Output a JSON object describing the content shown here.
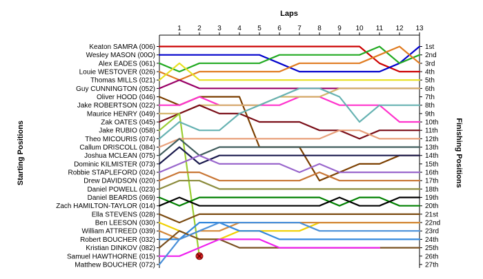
{
  "chart_data": {
    "type": "line",
    "title": "",
    "xlabel": "Laps",
    "ylabel_left": "Starting Positions",
    "ylabel_right": "Finishing Positions",
    "x": [
      0,
      1,
      2,
      3,
      4,
      5,
      6,
      7,
      8,
      9,
      10,
      11,
      12,
      13
    ],
    "x_tick_labels": [
      "1",
      "2",
      "3",
      "4",
      "5",
      "6",
      "7",
      "8",
      "9",
      "10",
      "11",
      "12",
      "13"
    ],
    "starting_order": [
      "Keaton SAMRA (006)",
      "Wesley MASON (00O)",
      "Alex EADES (061)",
      "Louie WESTOVER (026)",
      "Thomas MILLS (021)",
      "Guy CUNNINGTON (052)",
      "Oliver HOOD (046)",
      "Jake ROBERTSON (022)",
      "Maurice HENRY (049)",
      "Zak OATES (045)",
      "Jake RUBIO (058)",
      "Theo MICOURIS (074)",
      "Callum DRISCOLL (084)",
      "Joshua MCLEAN (075)",
      "Dominic KILMISTER (073)",
      "Robbie STAPLEFORD (024)",
      "Drew DAVIDSON (020)",
      "Daniel POWELL (023)",
      "Daniel BEARDS (069)",
      "Zach HAMILTON-TAYLOR (014)",
      "Ella STEVENS (028)",
      "Ben LEESON (030)",
      "William ATTREED (039)",
      "Robert BOUCHER (032)",
      "Kristian DINKOV (082)",
      "Samuel HAWTHORNE (015)",
      "Matthew BOUCHER (072)"
    ],
    "finishing_labels": [
      "1st",
      "2nd",
      "3rd",
      "4th",
      "5th",
      "6th",
      "7th",
      "8th",
      "9th",
      "10th",
      "11th",
      "12th",
      "13th",
      "14th",
      "15th",
      "16th",
      "17th",
      "18th",
      "19th",
      "20th",
      "21st",
      "22nd",
      "23rd",
      "24th",
      "25th",
      "26th",
      "27th"
    ],
    "ylim": [
      1,
      27
    ],
    "grid": false,
    "series": [
      {
        "color": "#cc0000",
        "positions": [
          1,
          1,
          1,
          1,
          1,
          1,
          1,
          1,
          1,
          1,
          1,
          3,
          4,
          4
        ]
      },
      {
        "color": "#0000cc",
        "positions": [
          2,
          2,
          2,
          2,
          2,
          2,
          3,
          4,
          4,
          4,
          4,
          4,
          3,
          1
        ]
      },
      {
        "color": "#22aa22",
        "positions": [
          3,
          4,
          3,
          3,
          3,
          3,
          2,
          2,
          2,
          2,
          2,
          1,
          3,
          2
        ]
      },
      {
        "color": "#e07b20",
        "positions": [
          4,
          5,
          4,
          4,
          4,
          4,
          4,
          3,
          3,
          3,
          3,
          2,
          1,
          3
        ]
      },
      {
        "color": "#e8e020",
        "positions": [
          5,
          3,
          5,
          5,
          5,
          5,
          5,
          5,
          5,
          5,
          5,
          5,
          5,
          5
        ]
      },
      {
        "color": "#990066",
        "positions": [
          6,
          5,
          6,
          6,
          6,
          6,
          6,
          6,
          6,
          6,
          6,
          6,
          6,
          6
        ]
      },
      {
        "color": "#7b3f00",
        "positions": [
          7,
          8,
          7,
          7,
          7,
          13,
          13,
          13,
          17,
          16,
          15,
          15,
          14,
          14
        ]
      },
      {
        "color": "#ff33cc",
        "positions": [
          8,
          8,
          7,
          8,
          8,
          8,
          8,
          7,
          7,
          8,
          8,
          8,
          10,
          10
        ]
      },
      {
        "color": "#d4b56a",
        "positions": [
          9,
          9,
          8,
          8,
          8,
          8,
          7,
          7,
          7,
          6,
          6,
          6,
          6,
          6
        ]
      },
      {
        "color": "#7a0e18",
        "positions": [
          10,
          9,
          8,
          9,
          9,
          10,
          10,
          10,
          11,
          11,
          12,
          11,
          11,
          11
        ]
      },
      {
        "color": "#9acd32",
        "positions": [
          11,
          9,
          26
        ]
      },
      {
        "color": "#66b2b2",
        "positions": [
          12,
          10,
          11,
          11,
          9,
          8,
          7,
          6,
          6,
          7,
          10,
          8,
          8,
          8
        ]
      },
      {
        "color": "#e8a07a",
        "positions": [
          13,
          12,
          12,
          12,
          12,
          12,
          12,
          12,
          12,
          11,
          11,
          12,
          12,
          12
        ]
      },
      {
        "color": "#3f5c5c",
        "positions": [
          14,
          12,
          14,
          13,
          13,
          13,
          13,
          13,
          13,
          13,
          13,
          13,
          13,
          13
        ]
      },
      {
        "color": "#1a1a4d",
        "positions": [
          15,
          13,
          15,
          14,
          14,
          14,
          14,
          14,
          14,
          14,
          14,
          14,
          14,
          14
        ]
      },
      {
        "color": "#9966cc",
        "positions": [
          16,
          15,
          14,
          15,
          15,
          15,
          15,
          16,
          15,
          16,
          16,
          16,
          16,
          16
        ]
      },
      {
        "color": "#c87533",
        "positions": [
          17,
          16,
          16,
          17,
          17,
          17,
          17,
          17,
          16,
          17,
          17,
          17,
          17,
          17
        ]
      },
      {
        "color": "#8b8b3c",
        "positions": [
          18,
          17,
          17,
          18,
          18,
          18,
          18,
          18,
          18,
          18,
          18,
          18,
          18,
          18
        ]
      },
      {
        "color": "#008000",
        "positions": [
          19,
          20,
          19,
          19,
          19,
          19,
          19,
          19,
          19,
          20,
          19,
          19,
          20,
          20
        ]
      },
      {
        "color": "#000000",
        "positions": [
          20,
          19,
          20,
          20,
          20,
          20,
          20,
          20,
          20,
          19,
          20,
          20,
          19,
          19
        ]
      },
      {
        "color": "#7a4a10",
        "positions": [
          21,
          22,
          21,
          21,
          21,
          21,
          21,
          21,
          21,
          21,
          21,
          21,
          21,
          21
        ]
      },
      {
        "color": "#f0d000",
        "positions": [
          22,
          23,
          24,
          24,
          23,
          23,
          23,
          23,
          22,
          22,
          22,
          22,
          22,
          22
        ]
      },
      {
        "color": "#d4893b",
        "positions": [
          23,
          24,
          23,
          23,
          22,
          22,
          22,
          22,
          22,
          22,
          22,
          22,
          22,
          22
        ]
      },
      {
        "color": "#3388dd",
        "positions": [
          24,
          24,
          22,
          22,
          23,
          23,
          24,
          24,
          24,
          24,
          24,
          24,
          24,
          24
        ]
      },
      {
        "color": "#7a5020",
        "positions": [
          25,
          23,
          24,
          24,
          25,
          25,
          25,
          25,
          25,
          25,
          25,
          25,
          25,
          25
        ]
      },
      {
        "color": "#ee22ee",
        "positions": [
          26,
          26,
          25,
          24,
          24,
          24,
          25,
          25,
          25,
          25,
          25,
          25
        ]
      },
      {
        "color": "#4a90d9",
        "positions": [
          27,
          24,
          23,
          22,
          22,
          22,
          22,
          22,
          23,
          23,
          23,
          23,
          23,
          23
        ]
      }
    ],
    "retirement_marker": {
      "lap": 2,
      "position": 26
    }
  }
}
